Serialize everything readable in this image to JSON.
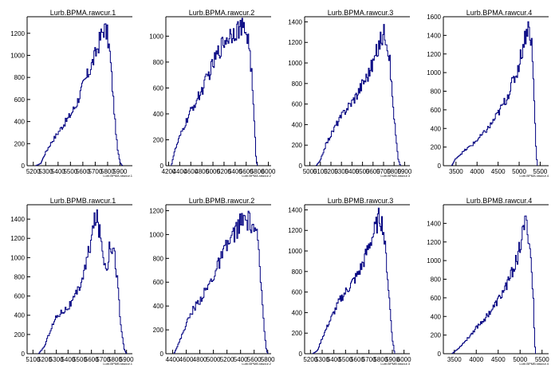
{
  "chart_data": [
    {
      "type": "histogram",
      "title": "Lurb.BPMA.rawcur.1",
      "xlabel": "Lurb.BPMA.rawcur.1",
      "xlim": [
        5150,
        6000
      ],
      "ylim": [
        0,
        1350
      ],
      "xticks": [
        "5200",
        "5300",
        "5400",
        "5500",
        "5600",
        "5700",
        "5800",
        "5900"
      ],
      "yticks": [
        "0",
        "200",
        "400",
        "600",
        "800",
        "1000",
        "1200"
      ],
      "ytick_values": [
        0,
        200,
        400,
        600,
        800,
        1000,
        1200
      ],
      "xtick_values": [
        5200,
        5300,
        5400,
        5500,
        5600,
        5700,
        5800,
        5900
      ],
      "profile": [
        [
          5220,
          0
        ],
        [
          5260,
          20
        ],
        [
          5300,
          120
        ],
        [
          5340,
          200
        ],
        [
          5400,
          300
        ],
        [
          5450,
          380
        ],
        [
          5500,
          460
        ],
        [
          5550,
          560
        ],
        [
          5600,
          720
        ],
        [
          5650,
          850
        ],
        [
          5700,
          1000
        ],
        [
          5740,
          1150
        ],
        [
          5770,
          1250
        ],
        [
          5800,
          1180
        ],
        [
          5820,
          1000
        ],
        [
          5840,
          700
        ],
        [
          5860,
          400
        ],
        [
          5880,
          150
        ],
        [
          5900,
          30
        ],
        [
          5920,
          0
        ]
      ]
    },
    {
      "type": "histogram",
      "title": "Lurb.BPMA.rawcur.2",
      "xlabel": "Lurb.BPMA.rawcur.2",
      "xlim": [
        4150,
        6050
      ],
      "ylim": [
        0,
        1150
      ],
      "xticks": [
        "4200",
        "4400",
        "4600",
        "4800",
        "5000",
        "5200",
        "5400",
        "5600",
        "5800",
        "6000"
      ],
      "yticks": [
        "0",
        "200",
        "400",
        "600",
        "800",
        "1000"
      ],
      "ytick_values": [
        0,
        200,
        400,
        600,
        800,
        1000
      ],
      "xtick_values": [
        4200,
        4400,
        4600,
        4800,
        5000,
        5200,
        5400,
        5600,
        5800,
        6000
      ],
      "profile": [
        [
          4250,
          0
        ],
        [
          4300,
          100
        ],
        [
          4400,
          220
        ],
        [
          4500,
          320
        ],
        [
          4600,
          420
        ],
        [
          4700,
          500
        ],
        [
          4800,
          580
        ],
        [
          4900,
          680
        ],
        [
          5000,
          780
        ],
        [
          5100,
          880
        ],
        [
          5200,
          960
        ],
        [
          5300,
          1010
        ],
        [
          5400,
          1050
        ],
        [
          5500,
          1060
        ],
        [
          5600,
          1040
        ],
        [
          5650,
          950
        ],
        [
          5700,
          700
        ],
        [
          5750,
          300
        ],
        [
          5780,
          50
        ],
        [
          5800,
          0
        ]
      ]
    },
    {
      "type": "histogram",
      "title": "Lurb.BPMA.rawcur.3",
      "xlabel": "Lurb.BPMA.rawcur.3",
      "xlim": [
        4950,
        5950
      ],
      "ylim": [
        0,
        1450
      ],
      "xticks": [
        "5000",
        "5100",
        "5200",
        "5300",
        "5400",
        "5500",
        "5600",
        "5700",
        "5800",
        "5900"
      ],
      "yticks": [
        "0",
        "200",
        "400",
        "600",
        "800",
        "1000",
        "1200",
        "1400"
      ],
      "ytick_values": [
        0,
        200,
        400,
        600,
        800,
        1000,
        1200,
        1400
      ],
      "xtick_values": [
        5000,
        5100,
        5200,
        5300,
        5400,
        5500,
        5600,
        5700,
        5800,
        5900
      ],
      "profile": [
        [
          5060,
          0
        ],
        [
          5100,
          50
        ],
        [
          5150,
          200
        ],
        [
          5200,
          300
        ],
        [
          5250,
          400
        ],
        [
          5300,
          480
        ],
        [
          5350,
          560
        ],
        [
          5400,
          620
        ],
        [
          5450,
          700
        ],
        [
          5500,
          800
        ],
        [
          5550,
          880
        ],
        [
          5600,
          1000
        ],
        [
          5650,
          1150
        ],
        [
          5700,
          1300
        ],
        [
          5730,
          1260
        ],
        [
          5760,
          1000
        ],
        [
          5790,
          600
        ],
        [
          5820,
          250
        ],
        [
          5840,
          60
        ],
        [
          5860,
          0
        ]
      ]
    },
    {
      "type": "histogram",
      "title": "Lurb.BPMA.rawcur.4",
      "xlabel": "Lurb.BPMA.rawcur.4",
      "xlim": [
        3200,
        5700
      ],
      "ylim": [
        0,
        1600
      ],
      "xticks": [
        "3500",
        "4000",
        "4500",
        "5000",
        "5500"
      ],
      "yticks": [
        "0",
        "200",
        "400",
        "600",
        "800",
        "1000",
        "1200",
        "1400",
        "1600"
      ],
      "ytick_values": [
        0,
        200,
        400,
        600,
        800,
        1000,
        1200,
        1400,
        1600
      ],
      "xtick_values": [
        3500,
        4000,
        4500,
        5000,
        5500
      ],
      "profile": [
        [
          3400,
          0
        ],
        [
          3500,
          80
        ],
        [
          3700,
          160
        ],
        [
          3900,
          230
        ],
        [
          4100,
          320
        ],
        [
          4300,
          420
        ],
        [
          4500,
          560
        ],
        [
          4700,
          720
        ],
        [
          4850,
          900
        ],
        [
          4950,
          1000
        ],
        [
          5050,
          1200
        ],
        [
          5150,
          1400
        ],
        [
          5200,
          1500
        ],
        [
          5250,
          1450
        ],
        [
          5300,
          1300
        ],
        [
          5350,
          800
        ],
        [
          5400,
          200
        ],
        [
          5430,
          0
        ]
      ]
    },
    {
      "type": "histogram",
      "title": "Lurb.BPMB.rawcur.1",
      "xlabel": "Lurb.BPMB.rawcur.1",
      "xlim": [
        5050,
        5950
      ],
      "ylim": [
        0,
        1550
      ],
      "xticks": [
        "5100",
        "5200",
        "5300",
        "5400",
        "5500",
        "5600",
        "5700",
        "5800",
        "5900"
      ],
      "yticks": [
        "0",
        "200",
        "400",
        "600",
        "800",
        "1000",
        "1200",
        "1400"
      ],
      "ytick_values": [
        0,
        200,
        400,
        600,
        800,
        1000,
        1200,
        1400
      ],
      "xtick_values": [
        5100,
        5200,
        5300,
        5400,
        5500,
        5600,
        5700,
        5800,
        5900
      ],
      "profile": [
        [
          5150,
          0
        ],
        [
          5200,
          80
        ],
        [
          5250,
          250
        ],
        [
          5300,
          380
        ],
        [
          5350,
          440
        ],
        [
          5400,
          480
        ],
        [
          5450,
          560
        ],
        [
          5500,
          700
        ],
        [
          5550,
          900
        ],
        [
          5600,
          1200
        ],
        [
          5640,
          1450
        ],
        [
          5680,
          1200
        ],
        [
          5720,
          900
        ],
        [
          5740,
          950
        ],
        [
          5760,
          1150
        ],
        [
          5790,
          1100
        ],
        [
          5820,
          800
        ],
        [
          5850,
          300
        ],
        [
          5880,
          50
        ],
        [
          5900,
          0
        ]
      ]
    },
    {
      "type": "histogram",
      "title": "Lurb.BPMB.rawcur.2",
      "xlabel": "Lurb.BPMB.rawcur.2",
      "xlim": [
        4300,
        5850
      ],
      "ylim": [
        0,
        1250
      ],
      "xticks": [
        "4400",
        "4600",
        "4800",
        "5000",
        "5200",
        "5400",
        "5600",
        "5800"
      ],
      "yticks": [
        "0",
        "200",
        "400",
        "600",
        "800",
        "1000",
        "1200"
      ],
      "ytick_values": [
        0,
        200,
        400,
        600,
        800,
        1000,
        1200
      ],
      "xtick_values": [
        4400,
        4600,
        4800,
        5000,
        5200,
        5400,
        5600,
        5800
      ],
      "profile": [
        [
          4420,
          0
        ],
        [
          4500,
          100
        ],
        [
          4600,
          250
        ],
        [
          4700,
          370
        ],
        [
          4800,
          450
        ],
        [
          4900,
          540
        ],
        [
          5000,
          650
        ],
        [
          5100,
          780
        ],
        [
          5200,
          900
        ],
        [
          5300,
          1000
        ],
        [
          5400,
          1100
        ],
        [
          5500,
          1120
        ],
        [
          5600,
          1060
        ],
        [
          5650,
          950
        ],
        [
          5700,
          600
        ],
        [
          5750,
          200
        ],
        [
          5780,
          40
        ],
        [
          5800,
          0
        ]
      ]
    },
    {
      "type": "histogram",
      "title": "Lurb.BPMB.rawcur.3",
      "xlabel": "Lurb.BPMB.rawcur.3",
      "xlim": [
        5150,
        6050
      ],
      "ylim": [
        0,
        1450
      ],
      "xticks": [
        "5200",
        "5300",
        "5400",
        "5500",
        "5600",
        "5700",
        "5800",
        "5900",
        "6000"
      ],
      "yticks": [
        "0",
        "200",
        "400",
        "600",
        "800",
        "1000",
        "1200",
        "1400"
      ],
      "ytick_values": [
        0,
        200,
        400,
        600,
        800,
        1000,
        1200,
        1400
      ],
      "xtick_values": [
        5200,
        5300,
        5400,
        5500,
        5600,
        5700,
        5800,
        5900,
        6000
      ],
      "profile": [
        [
          5220,
          0
        ],
        [
          5260,
          30
        ],
        [
          5300,
          150
        ],
        [
          5350,
          280
        ],
        [
          5400,
          400
        ],
        [
          5450,
          520
        ],
        [
          5500,
          600
        ],
        [
          5550,
          680
        ],
        [
          5600,
          760
        ],
        [
          5650,
          880
        ],
        [
          5700,
          1050
        ],
        [
          5750,
          1200
        ],
        [
          5790,
          1340
        ],
        [
          5820,
          1250
        ],
        [
          5850,
          900
        ],
        [
          5880,
          450
        ],
        [
          5900,
          150
        ],
        [
          5920,
          0
        ]
      ]
    },
    {
      "type": "histogram",
      "title": "Lurb.BPMB.rawcur.4",
      "xlabel": "Lurb.BPMB.rawcur.4",
      "xlim": [
        3250,
        5650
      ],
      "ylim": [
        0,
        1600
      ],
      "xticks": [
        "3500",
        "4000",
        "4500",
        "5000",
        "5500"
      ],
      "yticks": [
        "0",
        "200",
        "400",
        "600",
        "800",
        "1000",
        "1200",
        "1400"
      ],
      "ytick_values": [
        0,
        200,
        400,
        600,
        800,
        1000,
        1200,
        1400
      ],
      "xtick_values": [
        3500,
        4000,
        4500,
        5000,
        5500
      ],
      "profile": [
        [
          3450,
          0
        ],
        [
          3600,
          60
        ],
        [
          3800,
          160
        ],
        [
          4000,
          280
        ],
        [
          4200,
          380
        ],
        [
          4400,
          500
        ],
        [
          4600,
          650
        ],
        [
          4800,
          850
        ],
        [
          4950,
          1050
        ],
        [
          5050,
          1250
        ],
        [
          5100,
          1400
        ],
        [
          5150,
          1380
        ],
        [
          5200,
          1250
        ],
        [
          5250,
          1000
        ],
        [
          5300,
          600
        ],
        [
          5330,
          150
        ],
        [
          5350,
          0
        ]
      ]
    }
  ],
  "colors": {
    "line": "#000080",
    "axis": "#000000",
    "frame": "#000000"
  }
}
